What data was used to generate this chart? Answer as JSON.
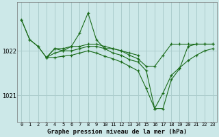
{
  "bg_color": "#cce8e8",
  "grid_color": "#aacccc",
  "line_color": "#1a6b1a",
  "marker_color": "#1a6b1a",
  "title": "Graphe pression niveau de la mer (hPa)",
  "xlim": [
    -0.5,
    23.5
  ],
  "ylim": [
    1020.4,
    1023.1
  ],
  "yticks": [
    1021,
    1022
  ],
  "xticks": [
    0,
    1,
    2,
    3,
    4,
    5,
    6,
    7,
    8,
    9,
    10,
    11,
    12,
    13,
    14,
    15,
    16,
    17,
    18,
    19,
    20,
    21,
    22,
    23
  ],
  "series": [
    {
      "x": [
        0,
        1,
        2,
        3,
        4,
        5,
        6,
        7,
        8,
        9,
        10,
        11,
        12,
        13,
        14,
        15,
        16,
        17,
        18,
        19,
        20,
        21,
        22,
        23
      ],
      "y": [
        1022.7,
        1022.25,
        1022.1,
        1021.85,
        1022.05,
        1022.0,
        1022.1,
        1022.4,
        1022.85,
        1022.25,
        1022.05,
        1021.95,
        1021.9,
        1021.8,
        1021.75,
        1021.55,
        1020.7,
        1020.7,
        1021.35,
        1021.6,
        1022.1,
        1022.15,
        1022.15,
        1022.15
      ]
    },
    {
      "x": [
        0,
        1,
        2,
        3,
        4,
        5,
        6,
        7,
        8,
        9,
        10,
        11,
        12,
        13,
        14
      ],
      "y": [
        1022.7,
        1022.25,
        1022.1,
        1021.85,
        1022.05,
        1022.05,
        1022.1,
        1022.1,
        1022.15,
        1022.15,
        1022.1,
        1022.05,
        1022.0,
        1021.95,
        1021.9
      ]
    },
    {
      "x": [
        3,
        4,
        5,
        6,
        7,
        8,
        9,
        10,
        11,
        12,
        13,
        14,
        15,
        16,
        17,
        18,
        19,
        20,
        21,
        22,
        23
      ],
      "y": [
        1021.85,
        1021.95,
        1022.0,
        1022.0,
        1022.05,
        1022.1,
        1022.1,
        1022.05,
        1022.05,
        1022.0,
        1021.9,
        1021.82,
        1021.65,
        1021.65,
        1021.9,
        1022.15,
        1022.15,
        1022.15,
        1022.15,
        1022.15,
        1022.15
      ]
    },
    {
      "x": [
        3,
        4,
        5,
        6,
        7,
        8,
        9,
        10,
        11,
        12,
        13,
        14,
        15,
        16,
        17,
        18,
        19,
        20,
        21,
        22,
        23
      ],
      "y": [
        1021.85,
        1021.85,
        1021.88,
        1021.9,
        1021.95,
        1022.0,
        1021.95,
        1021.88,
        1021.82,
        1021.75,
        1021.65,
        1021.55,
        1021.15,
        1020.7,
        1021.05,
        1021.45,
        1021.62,
        1021.78,
        1021.9,
        1022.0,
        1022.05
      ]
    }
  ]
}
